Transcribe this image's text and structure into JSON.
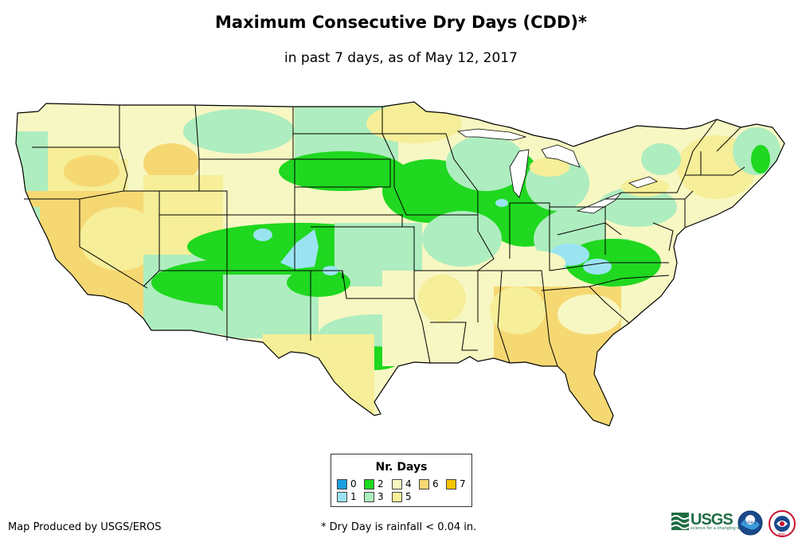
{
  "title": "Maximum Consecutive Dry Days (CDD)*",
  "subtitle": "in past 7 days, as of May 12, 2017",
  "legend": {
    "title": "Nr. Days",
    "items": [
      {
        "label": "0",
        "color": "#1a9fe0"
      },
      {
        "label": "1",
        "color": "#9ae4f2"
      },
      {
        "label": "2",
        "color": "#1fd81f"
      },
      {
        "label": "3",
        "color": "#aeedbf"
      },
      {
        "label": "4",
        "color": "#f7f7c3"
      },
      {
        "label": "5",
        "color": "#f6ee98"
      },
      {
        "label": "6",
        "color": "#f6d873"
      },
      {
        "label": "7",
        "color": "#f7c400"
      }
    ]
  },
  "credit": "Map Produced by USGS/EROS",
  "footnote": "* Dry Day is rainfall < 0.04 in.",
  "logos": {
    "usgs": "USGS",
    "usgs_tagline": "science for a changing world",
    "noaa": "noaa",
    "nws": "NWS"
  }
}
